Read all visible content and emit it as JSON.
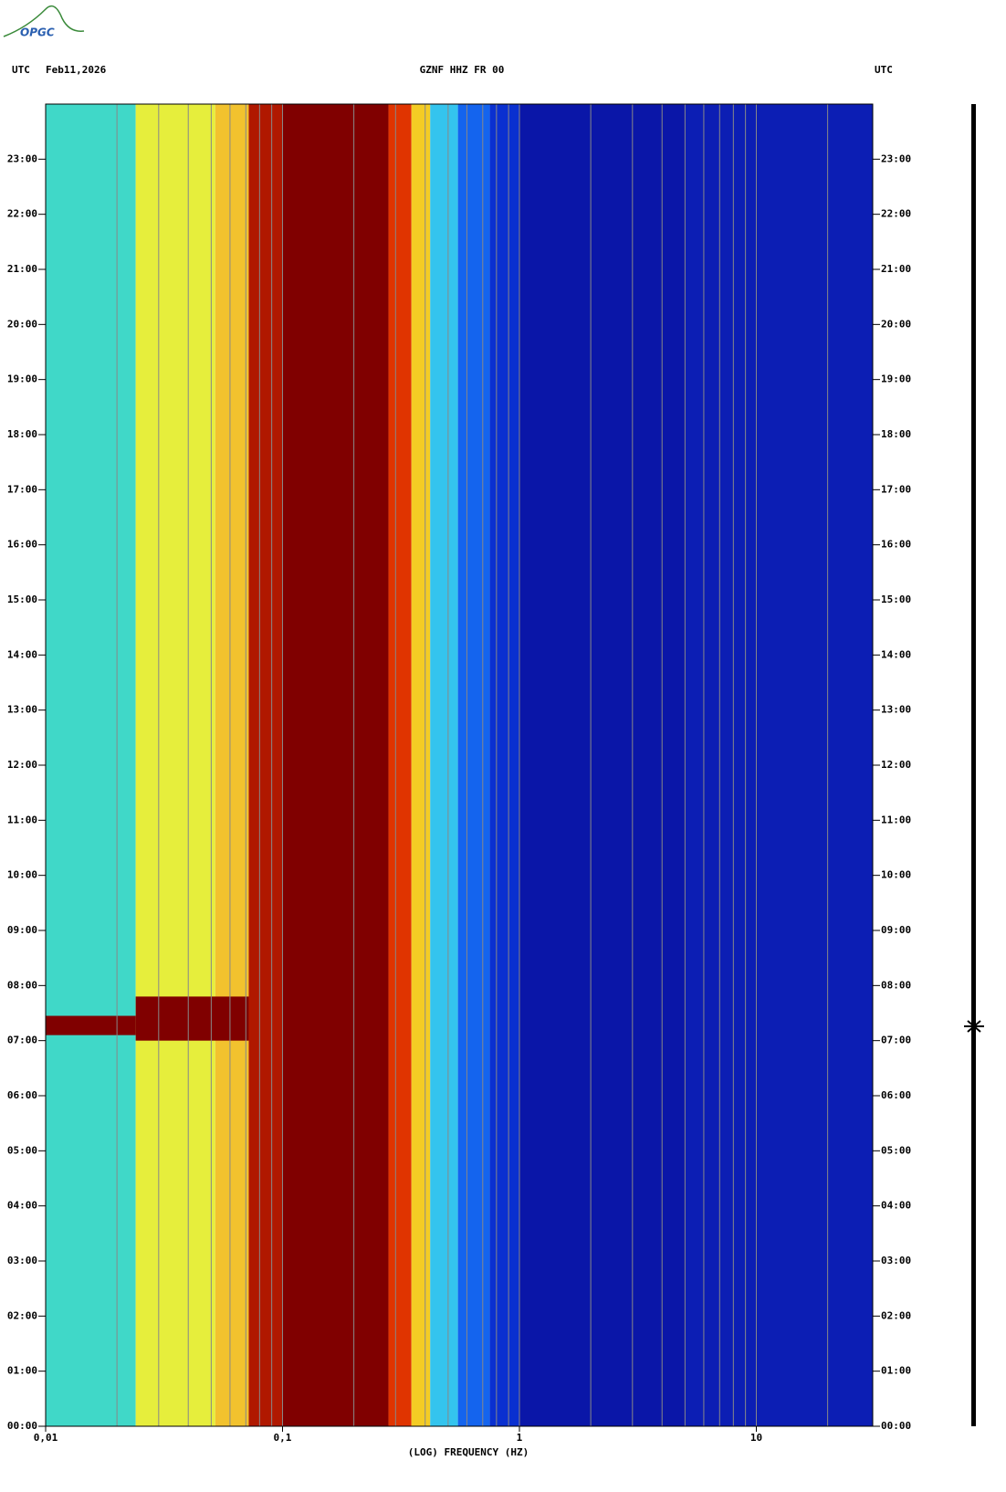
{
  "logo": "OPGC",
  "chart_data": {
    "type": "spectrogram",
    "title": "GZNF HHZ FR 00",
    "date": "Feb11,2026",
    "timezone_left": "UTC",
    "timezone_right": "UTC",
    "x_label": "(LOG) FREQUENCY (HZ)",
    "x_log": true,
    "xlim": [
      0.01,
      31
    ],
    "xticks": [
      {
        "value": 0.01,
        "label": "0,01"
      },
      {
        "value": 0.1,
        "label": "0,1"
      },
      1,
      10
    ],
    "xgrid_minor": [
      0.02,
      0.03,
      0.04,
      0.05,
      0.06,
      0.07,
      0.08,
      0.09,
      0.2,
      0.3,
      0.4,
      0.5,
      0.6,
      0.7,
      0.8,
      0.9,
      2,
      3,
      4,
      5,
      6,
      7,
      8,
      9,
      20
    ],
    "ylim": [
      0,
      24
    ],
    "yticks": [
      {
        "value": 0,
        "label": "00:00"
      },
      {
        "value": 1,
        "label": "01:00"
      },
      {
        "value": 2,
        "label": "02:00"
      },
      {
        "value": 3,
        "label": "03:00"
      },
      {
        "value": 4,
        "label": "04:00"
      },
      {
        "value": 5,
        "label": "05:00"
      },
      {
        "value": 6,
        "label": "06:00"
      },
      {
        "value": 7,
        "label": "07:00"
      },
      {
        "value": 8,
        "label": "08:00"
      },
      {
        "value": 9,
        "label": "09:00"
      },
      {
        "value": 10,
        "label": "10:00"
      },
      {
        "value": 11,
        "label": "11:00"
      },
      {
        "value": 12,
        "label": "12:00"
      },
      {
        "value": 13,
        "label": "13:00"
      },
      {
        "value": 14,
        "label": "14:00"
      },
      {
        "value": 15,
        "label": "15:00"
      },
      {
        "value": 16,
        "label": "16:00"
      },
      {
        "value": 17,
        "label": "17:00"
      },
      {
        "value": 18,
        "label": "18:00"
      },
      {
        "value": 19,
        "label": "19:00"
      },
      {
        "value": 20,
        "label": "20:00"
      },
      {
        "value": 21,
        "label": "21:00"
      },
      {
        "value": 22,
        "label": "22:00"
      },
      {
        "value": 23,
        "label": "23:00"
      }
    ],
    "bands": [
      {
        "from": 0.01,
        "to": 0.024,
        "color": "#40d8c8"
      },
      {
        "from": 0.024,
        "to": 0.052,
        "color": "#e6ee3c"
      },
      {
        "from": 0.052,
        "to": 0.072,
        "color": "#f2c22e"
      },
      {
        "from": 0.072,
        "to": 0.1,
        "color": "#b01800"
      },
      {
        "from": 0.1,
        "to": 0.28,
        "color": "#800000"
      },
      {
        "from": 0.28,
        "to": 0.35,
        "color": "#e03400"
      },
      {
        "from": 0.35,
        "to": 0.42,
        "color": "#f4cc24"
      },
      {
        "from": 0.42,
        "to": 0.55,
        "color": "#34c4ee"
      },
      {
        "from": 0.55,
        "to": 0.75,
        "color": "#1464ee"
      },
      {
        "from": 0.75,
        "to": 1,
        "color": "#0a30d0"
      },
      {
        "from": 1,
        "to": 5,
        "color": "#0a16a8"
      },
      {
        "from": 5,
        "to": 31,
        "color": "#0c1eb4"
      }
    ],
    "events": [
      {
        "from": 0.01,
        "to": 0.024,
        "start": 7.1,
        "end": 7.45,
        "color": "#800000"
      },
      {
        "from": 0.024,
        "to": 0.072,
        "start": 7.0,
        "end": 7.8,
        "color": "#800000"
      }
    ]
  }
}
